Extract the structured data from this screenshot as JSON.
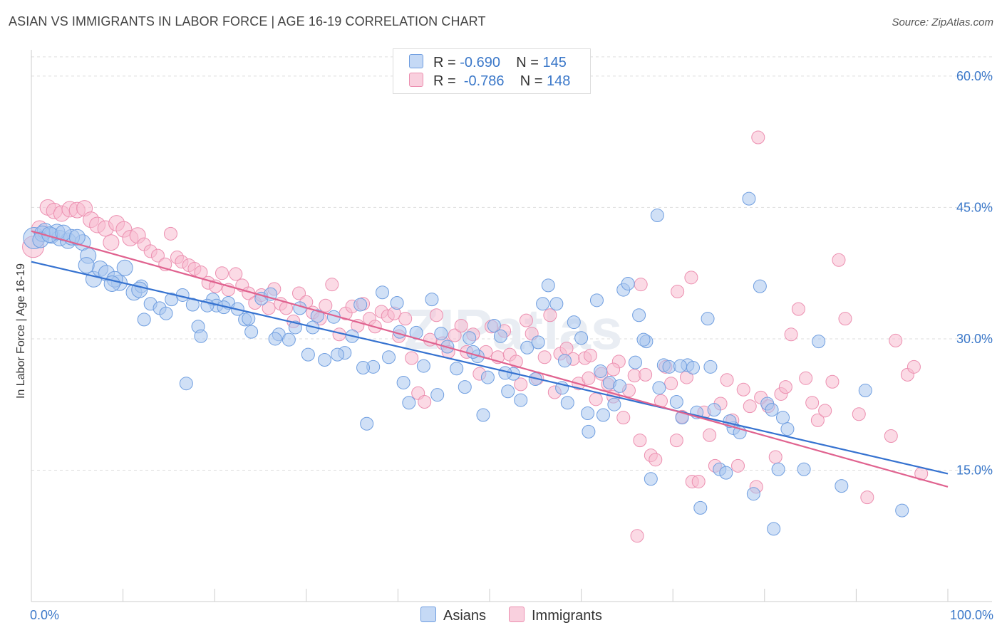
{
  "title": "ASIAN VS IMMIGRANTS IN LABOR FORCE | AGE 16-19 CORRELATION CHART",
  "source": "Source: ZipAtlas.com",
  "watermark": "ZIPatlas",
  "legend_top": [
    {
      "r_label": "R =",
      "r_value": "-0.690",
      "n_label": "N =",
      "n_value": "145"
    },
    {
      "r_label": "R =",
      "r_value": "-0.786",
      "n_label": "N =",
      "n_value": "148"
    }
  ],
  "legend_bottom": [
    "Asians",
    "Immigrants"
  ],
  "colors": {
    "asians_fill": "#a9c6ef",
    "asians_stroke": "#6f9ee0",
    "asians_line": "#3572d0",
    "immigrants_fill": "#f7bcd0",
    "immigrants_stroke": "#ec8fb0",
    "immigrants_line": "#e0628f",
    "tick_text": "#3b78c9",
    "grid": "#dddddd"
  },
  "chart_data": {
    "type": "scatter",
    "title": "ASIAN VS IMMIGRANTS IN LABOR FORCE | AGE 16-19 CORRELATION CHART",
    "xlabel": "",
    "ylabel": "In Labor Force | Age 16-19",
    "xlim": [
      0,
      100
    ],
    "ylim": [
      0,
      63
    ],
    "x_tick_labels": [
      "0.0%",
      "100.0%"
    ],
    "y_ticks": [
      15,
      30,
      45,
      60
    ],
    "y_tick_labels": [
      "15.0%",
      "30.0%",
      "45.0%",
      "60.0%"
    ],
    "grid": true,
    "legend_position": "top-center",
    "series": [
      {
        "name": "Asians",
        "r": -0.69,
        "n": 145,
        "trend": {
          "x": [
            0,
            100
          ],
          "y": [
            38.8,
            14.6
          ]
        },
        "points": [
          [
            0.3,
            41.5
          ],
          [
            1.5,
            42.3
          ],
          [
            2.2,
            41.8
          ],
          [
            3.1,
            41.5
          ],
          [
            4,
            41.2
          ],
          [
            5.6,
            41
          ],
          [
            6.2,
            39.5
          ],
          [
            6.8,
            36.8
          ],
          [
            7.5,
            38
          ],
          [
            8.2,
            37.5
          ],
          [
            9.6,
            36.4
          ],
          [
            10.2,
            38.1
          ],
          [
            11.2,
            35.3
          ],
          [
            12,
            36
          ],
          [
            12.3,
            32.2
          ],
          [
            13,
            34
          ],
          [
            14,
            33.5
          ],
          [
            15.3,
            34.5
          ],
          [
            16.5,
            35
          ],
          [
            17.6,
            33.9
          ],
          [
            18.2,
            31.4
          ],
          [
            18.5,
            30.3
          ],
          [
            19.8,
            34.5
          ],
          [
            20.2,
            33.8
          ],
          [
            21.5,
            34.1
          ],
          [
            22.5,
            33.4
          ],
          [
            23.3,
            32.2
          ],
          [
            24,
            30.8
          ],
          [
            25.1,
            34.6
          ],
          [
            26.1,
            35.1
          ],
          [
            27,
            30.5
          ],
          [
            28.1,
            29.9
          ],
          [
            28.8,
            31.3
          ],
          [
            29.3,
            33.5
          ],
          [
            30.2,
            28.2
          ],
          [
            31.2,
            32.6
          ],
          [
            32,
            27.6
          ],
          [
            33,
            32.5
          ],
          [
            34.2,
            28.4
          ],
          [
            35,
            30.3
          ],
          [
            35.9,
            33.9
          ],
          [
            36.6,
            20.3
          ],
          [
            37.3,
            26.8
          ],
          [
            38.3,
            35.3
          ],
          [
            39,
            27.9
          ],
          [
            39.9,
            34.1
          ],
          [
            40.6,
            25
          ],
          [
            41.2,
            22.7
          ],
          [
            42,
            30.7
          ],
          [
            42.8,
            26.9
          ],
          [
            43.7,
            34.5
          ],
          [
            44.3,
            23.6
          ],
          [
            45.4,
            29.1
          ],
          [
            46.4,
            26.6
          ],
          [
            47.3,
            24.5
          ],
          [
            47.8,
            30.1
          ],
          [
            48.7,
            28
          ],
          [
            49.3,
            21.3
          ],
          [
            49.8,
            25.6
          ],
          [
            50.5,
            31.5
          ],
          [
            51.2,
            30.3
          ],
          [
            52,
            24
          ],
          [
            52.6,
            26
          ],
          [
            53.4,
            23
          ],
          [
            54.1,
            29
          ],
          [
            55,
            25.4
          ],
          [
            55.8,
            34
          ],
          [
            56.4,
            36.1
          ],
          [
            57.3,
            34
          ],
          [
            57.9,
            24.4
          ],
          [
            58.5,
            22.7
          ],
          [
            59.2,
            31.9
          ],
          [
            60,
            30.1
          ],
          [
            60.8,
            19.4
          ],
          [
            61.7,
            34.4
          ],
          [
            62.4,
            21.3
          ],
          [
            63.1,
            25
          ],
          [
            63.6,
            22.5
          ],
          [
            64.6,
            35.6
          ],
          [
            65.1,
            36.3
          ],
          [
            65.9,
            27.3
          ],
          [
            66.3,
            32.7
          ],
          [
            67.1,
            29.7
          ],
          [
            67.6,
            14
          ],
          [
            68.3,
            44.1
          ],
          [
            69,
            27
          ],
          [
            69.6,
            26.8
          ],
          [
            70.4,
            22.8
          ],
          [
            71,
            21
          ],
          [
            71.6,
            27
          ],
          [
            72.2,
            26.7
          ],
          [
            73,
            10.7
          ],
          [
            73.8,
            32.3
          ],
          [
            74.5,
            21.9
          ],
          [
            75.1,
            15.1
          ],
          [
            75.8,
            14.7
          ],
          [
            76.6,
            19.8
          ],
          [
            77.3,
            19.3
          ],
          [
            78.3,
            46
          ],
          [
            78.8,
            12.3
          ],
          [
            79.5,
            36
          ],
          [
            80.3,
            22.6
          ],
          [
            81,
            8.3
          ],
          [
            81.5,
            15.1
          ],
          [
            82,
            21
          ],
          [
            82.5,
            19.7
          ],
          [
            84.3,
            15.1
          ],
          [
            85.9,
            29.7
          ],
          [
            88.4,
            13.2
          ],
          [
            91,
            24.1
          ],
          [
            95,
            10.4
          ],
          [
            1.2,
            42
          ],
          [
            2.8,
            42.2
          ],
          [
            4.4,
            41.6
          ],
          [
            6,
            38.4
          ],
          [
            9.1,
            36.8
          ],
          [
            14.7,
            32.9
          ],
          [
            16.9,
            24.9
          ],
          [
            21,
            33.6
          ],
          [
            23.7,
            32.3
          ],
          [
            26.6,
            30
          ],
          [
            30.7,
            31.3
          ],
          [
            33.4,
            28.2
          ],
          [
            36.2,
            26.7
          ],
          [
            40.2,
            30.8
          ],
          [
            44.7,
            30.6
          ],
          [
            48.2,
            28.5
          ],
          [
            51.7,
            26.1
          ],
          [
            55.3,
            29.6
          ],
          [
            58.2,
            27.5
          ],
          [
            62.1,
            26.3
          ],
          [
            66.8,
            29.9
          ],
          [
            70.8,
            26.9
          ],
          [
            74.1,
            26.8
          ],
          [
            60.7,
            21.5
          ],
          [
            64.2,
            24.6
          ],
          [
            68.5,
            24.4
          ],
          [
            72.6,
            21.6
          ],
          [
            76.2,
            20.6
          ],
          [
            80.8,
            21.9
          ],
          [
            1,
            41.3
          ],
          [
            2,
            41.9
          ],
          [
            3.5,
            42.1
          ],
          [
            5,
            41.6
          ],
          [
            8.8,
            36.3
          ],
          [
            11.8,
            35.6
          ],
          [
            19.2,
            33.8
          ]
        ]
      },
      {
        "name": "Immigrants",
        "r": -0.786,
        "n": 148,
        "trend": {
          "x": [
            0,
            100
          ],
          "y": [
            42.3,
            13.1
          ]
        },
        "points": [
          [
            0.2,
            40.5
          ],
          [
            0.9,
            42.6
          ],
          [
            1.8,
            45
          ],
          [
            2.5,
            44.6
          ],
          [
            3.3,
            44.3
          ],
          [
            4.2,
            44.8
          ],
          [
            5,
            44.7
          ],
          [
            5.8,
            44.9
          ],
          [
            6.5,
            43.6
          ],
          [
            7.2,
            43
          ],
          [
            8.1,
            42.6
          ],
          [
            8.7,
            41
          ],
          [
            9.3,
            43.2
          ],
          [
            10.1,
            42.5
          ],
          [
            10.8,
            41.5
          ],
          [
            11.6,
            41.8
          ],
          [
            12.3,
            40.8
          ],
          [
            13,
            40
          ],
          [
            13.8,
            39.5
          ],
          [
            14.6,
            38.5
          ],
          [
            15.2,
            42
          ],
          [
            15.9,
            39.3
          ],
          [
            16.4,
            38.8
          ],
          [
            17.2,
            38.4
          ],
          [
            17.8,
            38
          ],
          [
            18.5,
            37.6
          ],
          [
            19.3,
            36.4
          ],
          [
            20.1,
            36
          ],
          [
            20.8,
            37.5
          ],
          [
            21.5,
            35.6
          ],
          [
            22.3,
            37.4
          ],
          [
            23,
            36.1
          ],
          [
            23.7,
            35.2
          ],
          [
            24.4,
            34.1
          ],
          [
            25.1,
            35
          ],
          [
            25.9,
            33.5
          ],
          [
            26.5,
            35.7
          ],
          [
            27.2,
            34
          ],
          [
            27.8,
            33.5
          ],
          [
            28.6,
            32
          ],
          [
            29.2,
            35.2
          ],
          [
            30,
            34.2
          ],
          [
            30.7,
            33
          ],
          [
            31.5,
            32.3
          ],
          [
            32.1,
            33.8
          ],
          [
            32.8,
            36.2
          ],
          [
            33.6,
            30.5
          ],
          [
            34.3,
            32.9
          ],
          [
            35,
            33.7
          ],
          [
            35.6,
            31.5
          ],
          [
            36.2,
            34
          ],
          [
            36.9,
            32.3
          ],
          [
            37.5,
            31.4
          ],
          [
            38.2,
            33.1
          ],
          [
            38.9,
            32.6
          ],
          [
            39.6,
            32.9
          ],
          [
            40.1,
            30.3
          ],
          [
            40.8,
            32.3
          ],
          [
            41.5,
            27.8
          ],
          [
            42.2,
            23.8
          ],
          [
            42.9,
            22.8
          ],
          [
            43.5,
            29.9
          ],
          [
            44.2,
            32.7
          ],
          [
            44.9,
            29.5
          ],
          [
            45.5,
            28.5
          ],
          [
            46.2,
            30.4
          ],
          [
            46.9,
            31.5
          ],
          [
            47.5,
            28.5
          ],
          [
            48.2,
            30.5
          ],
          [
            48.9,
            26
          ],
          [
            49.6,
            28.5
          ],
          [
            50.2,
            31.4
          ],
          [
            50.9,
            27.9
          ],
          [
            51.6,
            30.9
          ],
          [
            52.2,
            28.2
          ],
          [
            52.9,
            27.4
          ],
          [
            53.4,
            24.8
          ],
          [
            54,
            32.1
          ],
          [
            54.6,
            30.6
          ],
          [
            55.2,
            25.5
          ],
          [
            56,
            27.9
          ],
          [
            56.6,
            32.7
          ],
          [
            57.1,
            23.9
          ],
          [
            57.7,
            28.3
          ],
          [
            58.4,
            28.9
          ],
          [
            59.1,
            27.7
          ],
          [
            59.7,
            24.9
          ],
          [
            60.4,
            27.8
          ],
          [
            61,
            28.1
          ],
          [
            61.6,
            23.1
          ],
          [
            62.2,
            26
          ],
          [
            62.9,
            24.8
          ],
          [
            63.5,
            23.4
          ],
          [
            64.1,
            27.4
          ],
          [
            64.6,
            21
          ],
          [
            65.2,
            24.1
          ],
          [
            65.8,
            25.8
          ],
          [
            66.4,
            18.4
          ],
          [
            67,
            25.9
          ],
          [
            67.6,
            16.7
          ],
          [
            68.1,
            16.2
          ],
          [
            68.7,
            22.9
          ],
          [
            69.2,
            26.8
          ],
          [
            69.8,
            24.9
          ],
          [
            70.4,
            18.4
          ],
          [
            71,
            21.1
          ],
          [
            71.5,
            25.6
          ],
          [
            72.1,
            13.7
          ],
          [
            72.8,
            13.7
          ],
          [
            73.4,
            21.6
          ],
          [
            74,
            19
          ],
          [
            74.6,
            15.5
          ],
          [
            75.2,
            22.6
          ],
          [
            75.9,
            25.3
          ],
          [
            76.5,
            20.7
          ],
          [
            77.1,
            15.5
          ],
          [
            77.7,
            24.2
          ],
          [
            78.4,
            22.3
          ],
          [
            79.1,
            13.1
          ],
          [
            79.6,
            23.3
          ],
          [
            80.4,
            22.3
          ],
          [
            81.2,
            16.5
          ],
          [
            81.8,
            23.7
          ],
          [
            82.3,
            24.5
          ],
          [
            82.9,
            30.5
          ],
          [
            83.7,
            33.4
          ],
          [
            84.5,
            25.5
          ],
          [
            85.2,
            22.7
          ],
          [
            85.8,
            20.7
          ],
          [
            86.6,
            21.8
          ],
          [
            87.4,
            25.1
          ],
          [
            88.1,
            39
          ],
          [
            88.8,
            32.3
          ],
          [
            90.3,
            21.4
          ],
          [
            91.2,
            11.9
          ],
          [
            93.8,
            18.9
          ],
          [
            94.3,
            29.8
          ],
          [
            95.6,
            25.9
          ],
          [
            96.3,
            26.8
          ],
          [
            97.1,
            14.6
          ],
          [
            79.3,
            53
          ],
          [
            60.8,
            25.5
          ],
          [
            66.1,
            7.5
          ],
          [
            72,
            37
          ],
          [
            70.5,
            35.4
          ],
          [
            66.5,
            36.2
          ],
          [
            63.5,
            26.5
          ]
        ]
      }
    ]
  }
}
